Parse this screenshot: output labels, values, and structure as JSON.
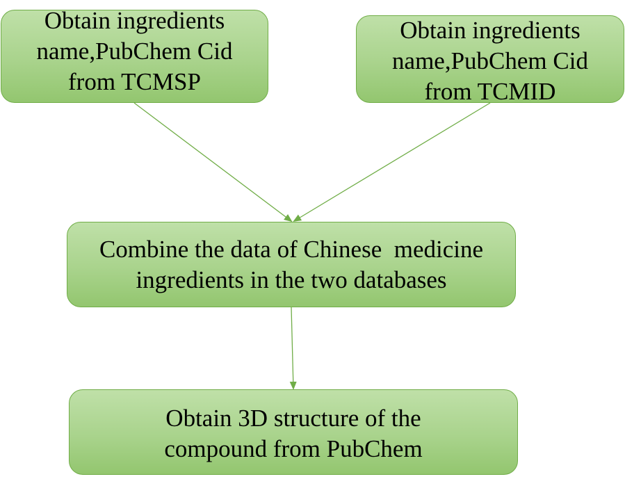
{
  "diagram": {
    "nodes": {
      "tcmsp": {
        "lines": [
          "Obtain ingredients",
          "name,PubChem Cid",
          "from TCMSP"
        ]
      },
      "tcmid": {
        "lines": [
          "Obtain ingredients",
          "name,PubChem Cid",
          "from TCMID"
        ]
      },
      "combine": {
        "lines": [
          "Combine the data of Chinese  medicine",
          "ingredients in the two databases"
        ]
      },
      "pubchem": {
        "lines": [
          "Obtain 3D structure of the",
          "compound from PubChem"
        ]
      }
    },
    "edges": [
      {
        "from": "tcmsp",
        "to": "combine"
      },
      {
        "from": "tcmid",
        "to": "combine"
      },
      {
        "from": "combine",
        "to": "pubchem"
      }
    ],
    "colors": {
      "box_fill": "#a9d38c",
      "box_border": "#70ad47",
      "arrow": "#70ad47",
      "text": "#000000"
    }
  }
}
